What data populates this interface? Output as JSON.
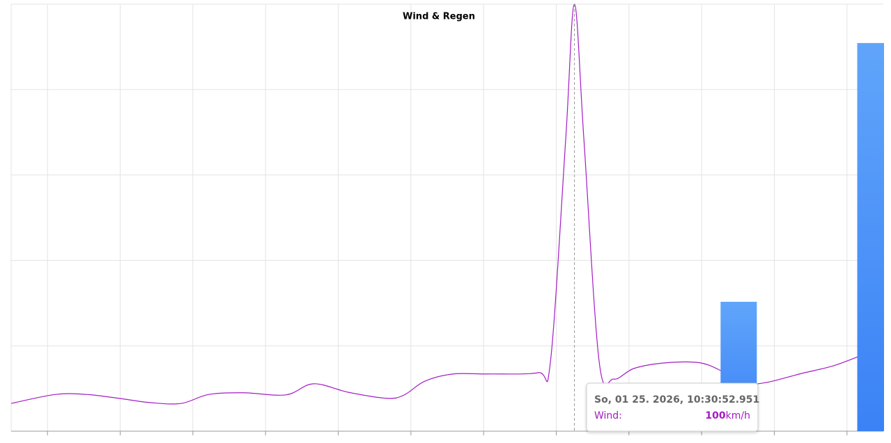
{
  "chart_data": {
    "type": "line",
    "title": "Wind & Regen",
    "xlim": [
      0,
      120
    ],
    "xticks": [
      5,
      15,
      25,
      35,
      45,
      55,
      65,
      75,
      85,
      95,
      105,
      115
    ],
    "ylim": [
      0,
      100
    ],
    "yticks": [
      0,
      20,
      40,
      60,
      80,
      100
    ],
    "grid": true,
    "series": [
      {
        "type": "line",
        "color": "#a41bc4",
        "x": [
          0,
          6.1,
          10.4,
          14.8,
          19.1,
          23.4,
          27.2,
          32,
          37.8,
          41.6,
          46.4,
          51.7,
          54.1,
          56.9,
          60.8,
          65.6,
          72.5,
          74.2,
          76.3,
          77.5,
          78.8,
          80.9,
          82.9,
          85.7,
          90,
          94.8,
          98.1,
          101,
          103.9,
          108.7,
          113.1,
          117.2
        ],
        "values": [
          6.5,
          8.6,
          8.6,
          7.7,
          6.7,
          6.5,
          8.6,
          9,
          8.5,
          11.1,
          9.1,
          7.7,
          8.5,
          11.7,
          13.4,
          13.4,
          13.7,
          16.3,
          68.4,
          100,
          68.4,
          16.3,
          12.2,
          14.7,
          16,
          16,
          13.8,
          11.2,
          11.4,
          13.5,
          15.3,
          17.9
        ]
      },
      {
        "type": "bar",
        "color": "#4287f5",
        "x": [
          100.1,
          118.9
        ],
        "values": [
          30.3,
          90.9
        ]
      }
    ],
    "tooltip": {
      "date": "So, 01 25. 2026, 10:30:52.951",
      "label": "Wind:",
      "value": 100,
      "unit": "km/h",
      "x": 77.5
    }
  }
}
